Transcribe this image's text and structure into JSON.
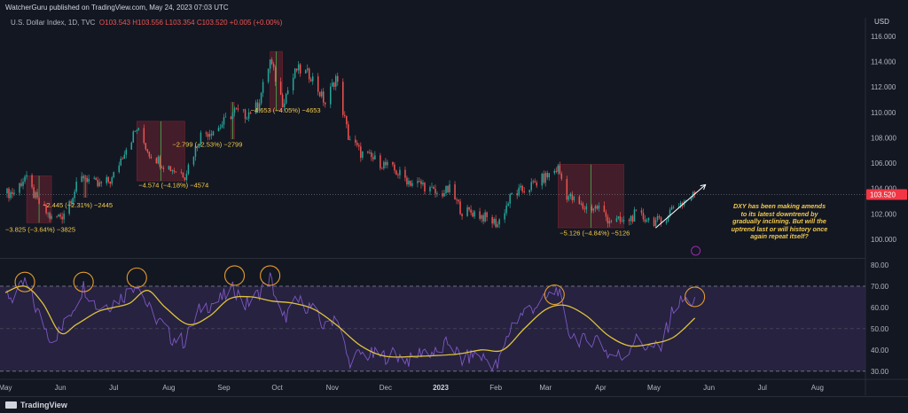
{
  "header": {
    "publisher": "WatcherGuru published on TradingView.com, May 24, 2023 07:03 UTC"
  },
  "symbol_line": {
    "name": "U.S. Dollar Index, 1D, TVC",
    "open": "O103.543",
    "high": "H103.556",
    "low": "L103.354",
    "close": "C103.520",
    "change": "+0.005 (+0.00%)"
  },
  "currency": "USD",
  "last_price": "103.520",
  "footer": {
    "brand": "TradingView"
  },
  "note": "DXY has been making amends to its latest downtrend by gradually inclining. But will the uptrend last or will history once again repeat itself?",
  "colors": {
    "background": "#131722",
    "up_candle": "#26a69a",
    "down_candle": "#ef5350",
    "ma_line": "#e0c33a",
    "rsi_line": "#7e57c2",
    "rsi_band": "#2a2545",
    "circle": "#e39b2d",
    "annotation_text": "#f2c94c",
    "price_label_bg": "#f23645"
  },
  "chart_data": [
    {
      "type": "candlestick",
      "title": "U.S. Dollar Index, 1D, TVC",
      "ylabel": "USD",
      "ylim": [
        98.6,
        116.9
      ],
      "yticks": [
        "100.000",
        "102.000",
        "104.000",
        "106.000",
        "108.000",
        "110.000",
        "112.000",
        "114.000",
        "116.000"
      ],
      "xlim": [
        "2022-05-01",
        "2023-08-28"
      ],
      "xticks": [
        {
          "label": "May",
          "date": "2022-05-01"
        },
        {
          "label": "Jun",
          "date": "2022-06-01"
        },
        {
          "label": "Jul",
          "date": "2022-07-01"
        },
        {
          "label": "Aug",
          "date": "2022-08-01"
        },
        {
          "label": "Sep",
          "date": "2022-09-01"
        },
        {
          "label": "Oct",
          "date": "2022-10-01"
        },
        {
          "label": "Nov",
          "date": "2022-11-01"
        },
        {
          "label": "Dec",
          "date": "2022-12-01"
        },
        {
          "label": "2023",
          "date": "2023-01-01"
        },
        {
          "label": "Feb",
          "date": "2023-02-01"
        },
        {
          "label": "Mar",
          "date": "2023-03-01"
        },
        {
          "label": "Apr",
          "date": "2023-04-01"
        },
        {
          "label": "May",
          "date": "2023-05-01"
        },
        {
          "label": "Jun",
          "date": "2023-06-01"
        },
        {
          "label": "Jul",
          "date": "2023-07-01"
        },
        {
          "label": "Aug",
          "date": "2023-08-01"
        }
      ],
      "close_path": [
        {
          "date": "2022-05-01",
          "value": 103.6
        },
        {
          "date": "2022-05-06",
          "value": 103.7
        },
        {
          "date": "2022-05-12",
          "value": 104.9
        },
        {
          "date": "2022-05-19",
          "value": 103.0
        },
        {
          "date": "2022-05-27",
          "value": 101.6
        },
        {
          "date": "2022-06-02",
          "value": 101.9
        },
        {
          "date": "2022-06-10",
          "value": 104.1
        },
        {
          "date": "2022-06-14",
          "value": 105.0
        },
        {
          "date": "2022-06-22",
          "value": 104.2
        },
        {
          "date": "2022-06-30",
          "value": 104.7
        },
        {
          "date": "2022-07-07",
          "value": 107.0
        },
        {
          "date": "2022-07-14",
          "value": 108.7
        },
        {
          "date": "2022-07-21",
          "value": 106.8
        },
        {
          "date": "2022-07-29",
          "value": 105.9
        },
        {
          "date": "2022-08-02",
          "value": 105.6
        },
        {
          "date": "2022-08-10",
          "value": 105.1
        },
        {
          "date": "2022-08-19",
          "value": 108.2
        },
        {
          "date": "2022-08-29",
          "value": 108.8
        },
        {
          "date": "2022-09-07",
          "value": 110.1
        },
        {
          "date": "2022-09-13",
          "value": 109.8
        },
        {
          "date": "2022-09-20",
          "value": 110.5
        },
        {
          "date": "2022-09-27",
          "value": 114.1
        },
        {
          "date": "2022-10-04",
          "value": 110.8
        },
        {
          "date": "2022-10-12",
          "value": 113.4
        },
        {
          "date": "2022-10-20",
          "value": 112.9
        },
        {
          "date": "2022-10-28",
          "value": 110.7
        },
        {
          "date": "2022-11-03",
          "value": 112.8
        },
        {
          "date": "2022-11-10",
          "value": 108.1
        },
        {
          "date": "2022-11-17",
          "value": 106.8
        },
        {
          "date": "2022-11-30",
          "value": 105.9
        },
        {
          "date": "2022-12-06",
          "value": 105.4
        },
        {
          "date": "2022-12-15",
          "value": 104.5
        },
        {
          "date": "2022-12-22",
          "value": 104.3
        },
        {
          "date": "2022-12-30",
          "value": 103.5
        },
        {
          "date": "2023-01-06",
          "value": 103.9
        },
        {
          "date": "2023-01-13",
          "value": 102.2
        },
        {
          "date": "2023-01-20",
          "value": 102.1
        },
        {
          "date": "2023-01-26",
          "value": 101.7
        },
        {
          "date": "2023-02-02",
          "value": 101.2
        },
        {
          "date": "2023-02-10",
          "value": 103.5
        },
        {
          "date": "2023-02-17",
          "value": 103.9
        },
        {
          "date": "2023-02-28",
          "value": 104.8
        },
        {
          "date": "2023-03-08",
          "value": 105.6
        },
        {
          "date": "2023-03-13",
          "value": 103.5
        },
        {
          "date": "2023-03-22",
          "value": 102.5
        },
        {
          "date": "2023-03-31",
          "value": 102.5
        },
        {
          "date": "2023-04-05",
          "value": 101.6
        },
        {
          "date": "2023-04-14",
          "value": 101.3
        },
        {
          "date": "2023-04-20",
          "value": 101.9
        },
        {
          "date": "2023-04-28",
          "value": 101.6
        },
        {
          "date": "2023-05-05",
          "value": 101.3
        },
        {
          "date": "2023-05-12",
          "value": 102.6
        },
        {
          "date": "2023-05-17",
          "value": 102.9
        },
        {
          "date": "2023-05-24",
          "value": 103.52
        }
      ],
      "annotations": [
        {
          "text": "−3.825 (−3.64%) −3825",
          "date": "2022-05-01",
          "value": 100.6
        },
        {
          "text": "−2.445 (−2.31%) −2445",
          "date": "2022-05-22",
          "value": 102.5
        },
        {
          "text": "−4.574 (−4.18%) −4574",
          "date": "2022-07-15",
          "value": 104.1
        },
        {
          "text": "−2.799 (−2.53%) −2799",
          "date": "2022-08-03",
          "value": 107.3
        },
        {
          "text": "−4.653 (−4.05%) −4653",
          "date": "2022-09-16",
          "value": 110.0
        },
        {
          "text": "−5.126 (−4.84%) −5126",
          "date": "2023-03-09",
          "value": 100.3
        }
      ],
      "boxes": [
        {
          "from": "2022-05-13",
          "to": "2022-05-27",
          "top": 105.0,
          "bottom": 101.3
        },
        {
          "from": "2022-06-14",
          "to": "2022-06-16",
          "top": 105.0,
          "bottom": 103.3
        },
        {
          "from": "2022-07-14",
          "to": "2022-08-10",
          "top": 109.3,
          "bottom": 104.6
        },
        {
          "from": "2022-09-05",
          "to": "2022-09-07",
          "top": 110.8,
          "bottom": 107.9
        },
        {
          "from": "2022-09-27",
          "to": "2022-10-04",
          "top": 114.8,
          "bottom": 110.1
        },
        {
          "from": "2023-03-08",
          "to": "2023-04-14",
          "top": 105.9,
          "bottom": 100.9
        }
      ],
      "trend_arrow": {
        "from": {
          "date": "2023-05-02",
          "value": 100.9
        },
        "to": {
          "date": "2023-05-30",
          "value": 104.3
        }
      }
    },
    {
      "type": "line",
      "title": "",
      "ylim": [
        27.0,
        82.5
      ],
      "yticks": [
        "30.00",
        "40.00",
        "50.00",
        "60.00",
        "70.00",
        "80.00"
      ],
      "band": [
        30,
        70
      ],
      "midline": 50,
      "series": [
        {
          "role": "oscillator",
          "points": [
            {
              "date": "2022-05-01",
              "value": 67
            },
            {
              "date": "2022-05-06",
              "value": 64
            },
            {
              "date": "2022-05-12",
              "value": 72
            },
            {
              "date": "2022-05-19",
              "value": 58
            },
            {
              "date": "2022-05-27",
              "value": 45
            },
            {
              "date": "2022-06-02",
              "value": 50
            },
            {
              "date": "2022-06-10",
              "value": 63
            },
            {
              "date": "2022-06-14",
              "value": 70
            },
            {
              "date": "2022-06-22",
              "value": 60
            },
            {
              "date": "2022-06-30",
              "value": 62
            },
            {
              "date": "2022-07-07",
              "value": 66
            },
            {
              "date": "2022-07-14",
              "value": 72
            },
            {
              "date": "2022-07-21",
              "value": 59
            },
            {
              "date": "2022-07-29",
              "value": 51
            },
            {
              "date": "2022-08-02",
              "value": 46
            },
            {
              "date": "2022-08-10",
              "value": 44
            },
            {
              "date": "2022-08-19",
              "value": 60
            },
            {
              "date": "2022-08-29",
              "value": 63
            },
            {
              "date": "2022-09-07",
              "value": 69
            },
            {
              "date": "2022-09-13",
              "value": 61
            },
            {
              "date": "2022-09-20",
              "value": 66
            },
            {
              "date": "2022-09-27",
              "value": 74
            },
            {
              "date": "2022-10-04",
              "value": 54
            },
            {
              "date": "2022-10-12",
              "value": 63
            },
            {
              "date": "2022-10-20",
              "value": 60
            },
            {
              "date": "2022-10-28",
              "value": 50
            },
            {
              "date": "2022-11-03",
              "value": 57
            },
            {
              "date": "2022-11-10",
              "value": 35
            },
            {
              "date": "2022-11-17",
              "value": 38
            },
            {
              "date": "2022-11-30",
              "value": 37
            },
            {
              "date": "2022-12-06",
              "value": 38
            },
            {
              "date": "2022-12-15",
              "value": 35
            },
            {
              "date": "2022-12-22",
              "value": 40
            },
            {
              "date": "2022-12-30",
              "value": 38
            },
            {
              "date": "2023-01-06",
              "value": 44
            },
            {
              "date": "2023-01-13",
              "value": 35
            },
            {
              "date": "2023-01-20",
              "value": 38
            },
            {
              "date": "2023-01-26",
              "value": 36
            },
            {
              "date": "2023-02-02",
              "value": 32
            },
            {
              "date": "2023-02-10",
              "value": 52
            },
            {
              "date": "2023-02-17",
              "value": 58
            },
            {
              "date": "2023-02-28",
              "value": 63
            },
            {
              "date": "2023-03-08",
              "value": 69
            },
            {
              "date": "2023-03-13",
              "value": 49
            },
            {
              "date": "2023-03-22",
              "value": 44
            },
            {
              "date": "2023-03-31",
              "value": 46
            },
            {
              "date": "2023-04-05",
              "value": 38
            },
            {
              "date": "2023-04-14",
              "value": 37
            },
            {
              "date": "2023-04-20",
              "value": 45
            },
            {
              "date": "2023-04-28",
              "value": 41
            },
            {
              "date": "2023-05-05",
              "value": 41
            },
            {
              "date": "2023-05-12",
              "value": 60
            },
            {
              "date": "2023-05-17",
              "value": 63
            },
            {
              "date": "2023-05-24",
              "value": 63
            }
          ]
        },
        {
          "role": "average",
          "points": [
            {
              "date": "2022-05-01",
              "value": 67
            },
            {
              "date": "2022-05-12",
              "value": 70
            },
            {
              "date": "2022-05-22",
              "value": 62
            },
            {
              "date": "2022-06-01",
              "value": 48
            },
            {
              "date": "2022-06-10",
              "value": 52
            },
            {
              "date": "2022-06-22",
              "value": 58
            },
            {
              "date": "2022-07-01",
              "value": 60
            },
            {
              "date": "2022-07-10",
              "value": 62
            },
            {
              "date": "2022-07-20",
              "value": 68
            },
            {
              "date": "2022-07-30",
              "value": 60
            },
            {
              "date": "2022-08-12",
              "value": 52
            },
            {
              "date": "2022-08-24",
              "value": 56
            },
            {
              "date": "2022-09-04",
              "value": 64
            },
            {
              "date": "2022-09-16",
              "value": 65
            },
            {
              "date": "2022-09-28",
              "value": 63
            },
            {
              "date": "2022-10-10",
              "value": 62
            },
            {
              "date": "2022-10-22",
              "value": 59
            },
            {
              "date": "2022-11-03",
              "value": 52
            },
            {
              "date": "2022-11-17",
              "value": 42
            },
            {
              "date": "2022-12-01",
              "value": 37
            },
            {
              "date": "2022-12-20",
              "value": 37
            },
            {
              "date": "2023-01-10",
              "value": 38
            },
            {
              "date": "2023-01-24",
              "value": 40
            },
            {
              "date": "2023-02-05",
              "value": 40
            },
            {
              "date": "2023-02-17",
              "value": 50
            },
            {
              "date": "2023-03-01",
              "value": 59
            },
            {
              "date": "2023-03-12",
              "value": 61
            },
            {
              "date": "2023-03-24",
              "value": 56
            },
            {
              "date": "2023-04-05",
              "value": 47
            },
            {
              "date": "2023-04-17",
              "value": 42
            },
            {
              "date": "2023-04-30",
              "value": 43
            },
            {
              "date": "2023-05-12",
              "value": 46
            },
            {
              "date": "2023-05-24",
              "value": 55
            }
          ]
        }
      ],
      "highlight_circles": [
        {
          "date": "2022-05-12",
          "value": 72
        },
        {
          "date": "2022-06-14",
          "value": 72
        },
        {
          "date": "2022-07-14",
          "value": 74
        },
        {
          "date": "2022-09-07",
          "value": 75
        },
        {
          "date": "2022-09-27",
          "value": 75
        },
        {
          "date": "2023-03-06",
          "value": 66
        },
        {
          "date": "2023-05-24",
          "value": 65
        }
      ]
    }
  ]
}
